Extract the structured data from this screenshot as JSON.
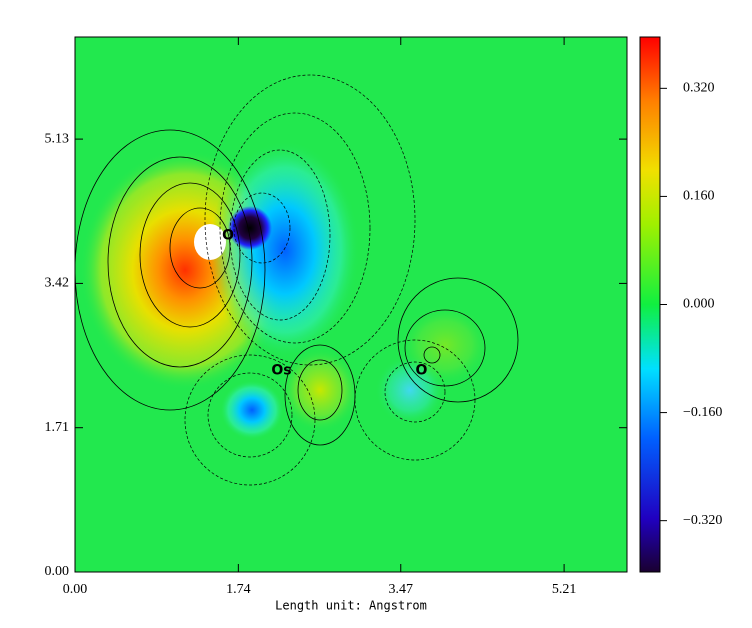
{
  "chart_data": {
    "type": "contour",
    "xlabel": "Length unit: Angstrom",
    "xlim": [
      0,
      5.88
    ],
    "ylim": [
      0,
      6.34
    ],
    "xticks": [
      {
        "value": 0,
        "label": "0.00"
      },
      {
        "value": 1.74,
        "label": "1.74"
      },
      {
        "value": 3.47,
        "label": "3.47"
      },
      {
        "value": 5.21,
        "label": "5.21"
      }
    ],
    "yticks": [
      {
        "value": 0,
        "label": "0.00"
      },
      {
        "value": 1.71,
        "label": "1.71"
      },
      {
        "value": 3.42,
        "label": "3.42"
      },
      {
        "value": 5.13,
        "label": "5.13"
      }
    ],
    "colorbar": {
      "clim": [
        -0.396,
        0.396
      ],
      "ticks": [
        {
          "value": 0.32,
          "label": "0.320"
        },
        {
          "value": 0.16,
          "label": "0.160"
        },
        {
          "value": 0,
          "label": "0.000"
        },
        {
          "value": -0.16,
          "label": "−0.160"
        },
        {
          "value": -0.32,
          "label": "−0.320"
        }
      ]
    },
    "annotations": [
      {
        "text": "O",
        "x": 1.63,
        "y": 3.99
      },
      {
        "text": "Os",
        "x": 2.2,
        "y": 2.39
      },
      {
        "text": "O",
        "x": 3.69,
        "y": 2.39
      }
    ],
    "annotation_color": "#e00000"
  }
}
